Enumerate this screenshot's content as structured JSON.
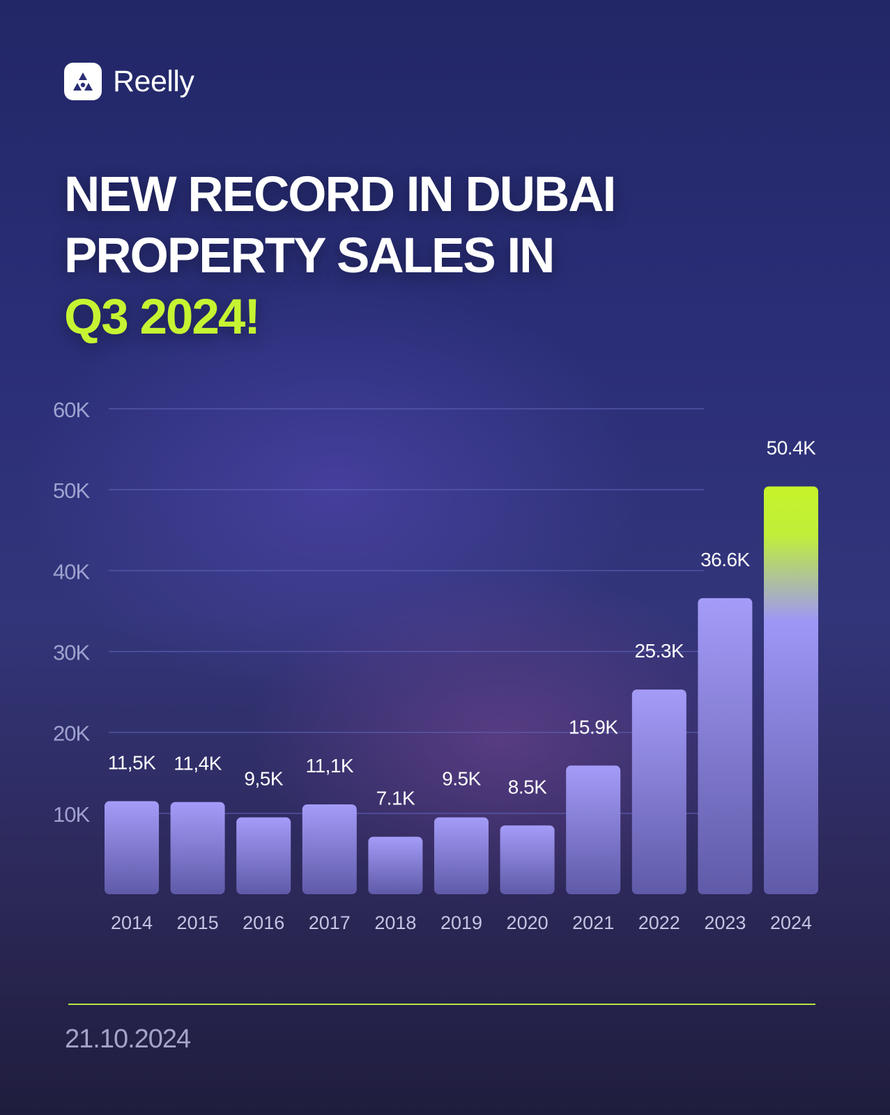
{
  "brand": {
    "name": "Reelly"
  },
  "headline": {
    "line1": "NEW RECORD IN DUBAI",
    "line2": "PROPERTY SALES IN",
    "line3": "Q3 2024!"
  },
  "colors": {
    "accent": "#c6f432",
    "bar": "#9b93f4",
    "background": "#252a6c"
  },
  "chart_data": {
    "type": "bar",
    "categories": [
      "2014",
      "2015",
      "2016",
      "2017",
      "2018",
      "2019",
      "2020",
      "2021",
      "2022",
      "2023",
      "2024"
    ],
    "values": [
      11.5,
      11.4,
      9.5,
      11.1,
      7.1,
      9.5,
      8.5,
      15.9,
      25.3,
      36.6,
      50.4
    ],
    "value_unit": "thousands",
    "data_labels": [
      "11,5K",
      "11,4K",
      "9,5K",
      "11,1K",
      "7.1K",
      "9.5K",
      "8.5K",
      "15.9K",
      "25.3K",
      "36.6K",
      "50.4K"
    ],
    "ylim": [
      0,
      60
    ],
    "y_ticks": [
      10,
      20,
      30,
      40,
      50,
      60
    ],
    "y_tick_labels": [
      "10K",
      "20K",
      "30K",
      "40K",
      "50K",
      "60K"
    ],
    "grid": true,
    "highlight_category": "2024"
  },
  "footer": {
    "date": "21.10.2024"
  }
}
